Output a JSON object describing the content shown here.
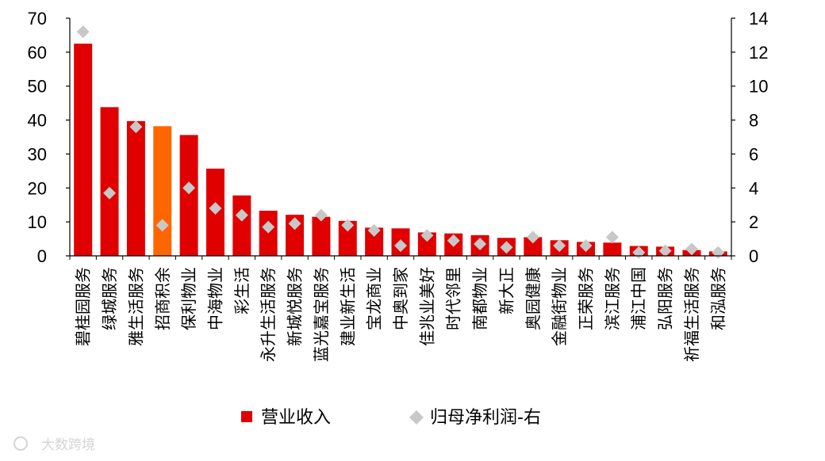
{
  "chart_data": {
    "type": "bar",
    "categories": [
      "碧桂园服务",
      "绿城服务",
      "雅生活服务",
      "招商积余",
      "保利物业",
      "中海物业",
      "彩生活",
      "永升生活服务",
      "新城悦服务",
      "蓝光嘉宝服务",
      "建业新生活",
      "宝龙商业",
      "中奥到家",
      "佳兆业美好",
      "时代邻里",
      "南都物业",
      "新大正",
      "奥园健康",
      "金融街物业",
      "正荣服务",
      "滨江服务",
      "浦江中国",
      "弘阳服务",
      "祈福生活服务",
      "和泓服务"
    ],
    "series": [
      {
        "name": "营业收入",
        "type": "bar",
        "axis": "left",
        "values": [
          62.5,
          43.8,
          39.7,
          38.2,
          35.6,
          25.7,
          17.8,
          13.3,
          12.1,
          11.5,
          10.3,
          8.3,
          8.1,
          6.9,
          6.6,
          6.1,
          5.3,
          5.5,
          4.6,
          4.1,
          3.9,
          2.9,
          2.7,
          1.7,
          1.3
        ],
        "highlight_index": 3
      },
      {
        "name": "归母净利润-右",
        "type": "scatter",
        "axis": "right",
        "values": [
          13.2,
          3.7,
          7.6,
          1.8,
          4.0,
          2.8,
          2.4,
          1.7,
          1.9,
          2.4,
          1.8,
          1.5,
          0.6,
          1.2,
          0.9,
          0.7,
          0.5,
          1.1,
          0.6,
          0.6,
          1.1,
          0.2,
          0.3,
          0.4,
          0.2
        ]
      }
    ],
    "ylim_left": [
      0,
      70
    ],
    "yticks_left": [
      0,
      10,
      20,
      30,
      40,
      50,
      60,
      70
    ],
    "ylim_right": [
      0,
      14
    ],
    "yticks_right": [
      0,
      2,
      4,
      6,
      8,
      10,
      12,
      14
    ],
    "legend_position": "bottom-center",
    "grid": false,
    "colors": {
      "bar": "#e00000",
      "highlight_bar": "#ff6600",
      "marker": "#c8c8c8",
      "axis": "#000000"
    }
  },
  "watermark": "大数跨境"
}
